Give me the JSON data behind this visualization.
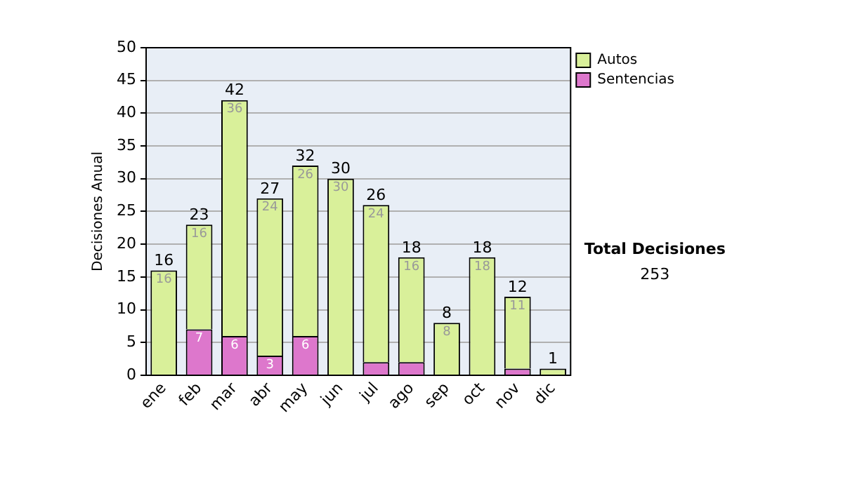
{
  "chart_data": {
    "type": "bar",
    "stacked": true,
    "ylabel": "Decisiones Anual",
    "categories": [
      "ene",
      "feb",
      "mar",
      "abr",
      "may",
      "jun",
      "jul",
      "ago",
      "sep",
      "oct",
      "nov",
      "dic"
    ],
    "series": [
      {
        "name": "Sentencias",
        "color": "#dd77cc",
        "values": [
          0,
          7,
          6,
          3,
          6,
          0,
          2,
          2,
          0,
          0,
          1,
          0
        ],
        "value_labels": [
          null,
          "7",
          "6",
          "3",
          "6",
          null,
          null,
          null,
          null,
          null,
          null,
          null
        ]
      },
      {
        "name": "Autos",
        "color": "#d9f09a",
        "values": [
          16,
          16,
          36,
          24,
          26,
          30,
          24,
          16,
          8,
          18,
          11,
          1
        ],
        "value_labels": [
          "16",
          "16",
          "36",
          "24",
          "26",
          "30",
          "24",
          "16",
          "8",
          "18",
          "11",
          null
        ]
      }
    ],
    "totals": [
      "16",
      "23",
      "42",
      "27",
      "32",
      "30",
      "26",
      "18",
      "8",
      "18",
      "12",
      "1"
    ],
    "ylim": [
      0,
      50
    ],
    "yticks": [
      0,
      5,
      10,
      15,
      20,
      25,
      30,
      35,
      40,
      45,
      50
    ],
    "grid": "y",
    "legend": "right",
    "annotations": [
      "Total Decisiones",
      "253"
    ]
  }
}
